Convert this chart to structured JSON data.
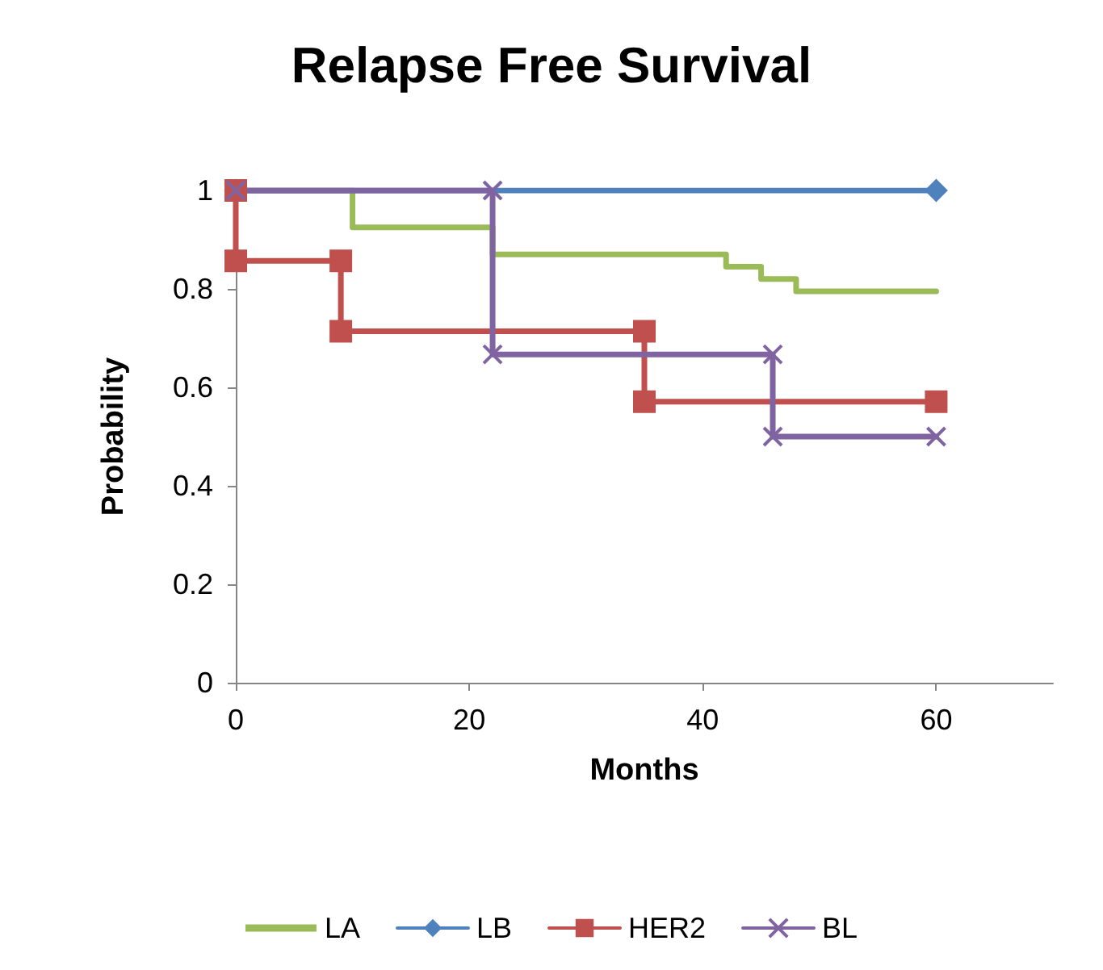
{
  "chart_data": {
    "type": "line",
    "title": "Relapse Free Survival",
    "xlabel": "Months",
    "ylabel": "Probability",
    "xlim": [
      0,
      70
    ],
    "xticks": [
      0,
      20,
      40,
      60
    ],
    "ylim": [
      0,
      1
    ],
    "yticks": [
      0,
      0.2,
      0.4,
      0.6,
      0.8,
      1
    ],
    "grid": false,
    "legend": "bottom",
    "line_style": "solid",
    "series": [
      {
        "name": "LA",
        "color": "#9bbb59",
        "marker": "none",
        "x": [
          0,
          10,
          10,
          22,
          22,
          42,
          42,
          45,
          45,
          48,
          48,
          60
        ],
        "values": [
          1,
          1,
          0.925,
          0.925,
          0.87,
          0.87,
          0.845,
          0.845,
          0.82,
          0.82,
          0.795,
          0.795
        ]
      },
      {
        "name": "LB",
        "color": "#4f81bd",
        "marker": "diamond",
        "x": [
          0,
          60
        ],
        "values": [
          1,
          1
        ]
      },
      {
        "name": "HER2",
        "color": "#c0504d",
        "marker": "square",
        "x": [
          0,
          0,
          9,
          9,
          35,
          35,
          60
        ],
        "values": [
          1,
          0.857,
          0.857,
          0.714,
          0.714,
          0.571,
          0.571
        ]
      },
      {
        "name": "BL",
        "color": "#8064a2",
        "marker": "cross",
        "x": [
          0,
          22,
          22,
          46,
          46,
          60
        ],
        "values": [
          1,
          1,
          0.667,
          0.667,
          0.5,
          0.5
        ]
      }
    ]
  }
}
